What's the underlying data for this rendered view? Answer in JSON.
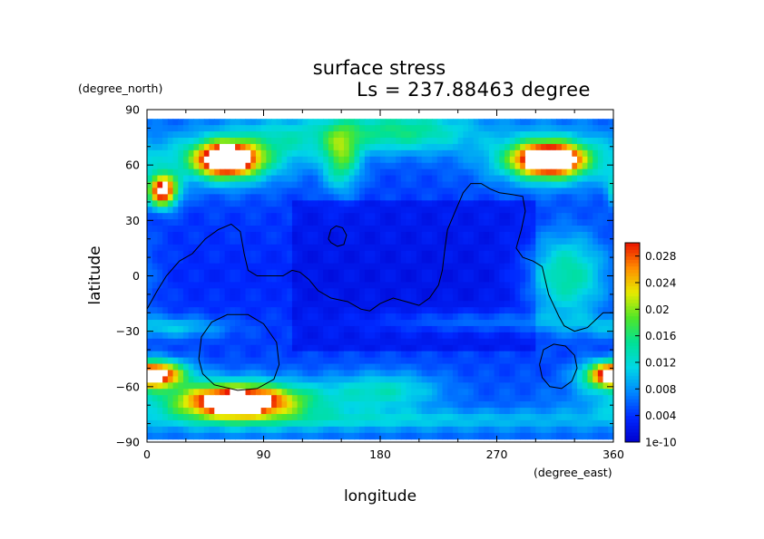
{
  "chart_data": {
    "type": "heatmap",
    "title": "surface stress",
    "subtitle": "Ls = 237.88463 degree",
    "xlabel": "longitude",
    "ylabel": "latitude",
    "x_unit": "(degree_east)",
    "y_unit": "(degree_north)",
    "xlim": [
      0,
      360
    ],
    "ylim": [
      -90,
      90
    ],
    "x_ticks": [
      "0",
      "90",
      "180",
      "270",
      "360"
    ],
    "y_ticks": [
      "90",
      "60",
      "30",
      "0",
      "−30",
      "−60",
      "−90"
    ],
    "x_tick_values": [
      0,
      90,
      180,
      270,
      360
    ],
    "y_tick_values": [
      90,
      60,
      30,
      0,
      -30,
      -60,
      -90
    ],
    "colorbar": {
      "range": [
        0,
        0.03
      ],
      "ticks": [
        "0.028",
        "0.024",
        "0.02",
        "0.016",
        "0.012",
        "0.008",
        "0.004",
        "1e-10"
      ],
      "tick_values": [
        0.028,
        0.024,
        0.02,
        0.016,
        0.012,
        0.008,
        0.004,
        0
      ],
      "colormap": "rainbow",
      "over_color": "#ffffff"
    },
    "grid": false,
    "features": [
      {
        "kind": "high",
        "lon": 62,
        "lat": 63,
        "dlon": 16,
        "dlat": 6,
        "value": 0.034
      },
      {
        "kind": "high",
        "lon": 62,
        "lat": 63,
        "dlon": 34,
        "dlat": 10,
        "value": 0.014
      },
      {
        "kind": "high",
        "lon": 310,
        "lat": 63,
        "dlon": 18,
        "dlat": 6,
        "value": 0.034
      },
      {
        "kind": "high",
        "lon": 310,
        "lat": 63,
        "dlon": 34,
        "dlat": 10,
        "value": 0.014
      },
      {
        "kind": "high",
        "lon": 12,
        "lat": 46,
        "dlon": 8,
        "dlat": 6,
        "value": 0.032
      },
      {
        "kind": "high",
        "lon": 150,
        "lat": 64,
        "dlon": 10,
        "dlat": 12,
        "value": 0.016
      },
      {
        "kind": "high",
        "lon": 195,
        "lat": 78,
        "dlon": 40,
        "dlat": 8,
        "value": 0.014
      },
      {
        "kind": "high",
        "lon": 110,
        "lat": 75,
        "dlon": 30,
        "dlat": 8,
        "value": 0.009
      },
      {
        "kind": "high",
        "lon": 325,
        "lat": 0,
        "dlon": 22,
        "dlat": 16,
        "value": 0.015
      },
      {
        "kind": "high",
        "lon": 70,
        "lat": -68,
        "dlon": 30,
        "dlat": 6,
        "value": 0.03
      },
      {
        "kind": "high",
        "lon": 70,
        "lat": -68,
        "dlon": 60,
        "dlat": 9,
        "value": 0.012
      },
      {
        "kind": "high",
        "lon": 10,
        "lat": -53,
        "dlon": 16,
        "dlat": 5,
        "value": 0.023
      },
      {
        "kind": "high",
        "lon": 355,
        "lat": -54,
        "dlon": 14,
        "dlat": 5,
        "value": 0.02
      },
      {
        "kind": "high",
        "lon": 190,
        "lat": -78,
        "dlon": 140,
        "dlat": 4,
        "value": 0.009
      },
      {
        "kind": "high",
        "lon": 260,
        "lat": -25,
        "dlon": 60,
        "dlat": 4,
        "value": 0.008
      },
      {
        "kind": "high",
        "lon": 20,
        "lat": -28,
        "dlon": 30,
        "dlat": 4,
        "value": 0.01
      },
      {
        "kind": "high",
        "lon": 185,
        "lat": -62,
        "dlon": 30,
        "dlat": 7,
        "value": 0.011
      }
    ],
    "contour_outlines": [
      {
        "name": "equatorial-line",
        "points": [
          [
            0,
            -18
          ],
          [
            8,
            -8
          ],
          [
            15,
            0
          ],
          [
            25,
            8
          ],
          [
            35,
            12
          ],
          [
            45,
            20
          ],
          [
            55,
            25
          ],
          [
            65,
            28
          ],
          [
            72,
            24
          ],
          [
            75,
            12
          ],
          [
            78,
            3
          ],
          [
            85,
            0
          ],
          [
            95,
            0
          ],
          [
            105,
            0
          ],
          [
            112,
            3
          ],
          [
            118,
            2
          ],
          [
            125,
            -2
          ],
          [
            132,
            -8
          ],
          [
            142,
            -12
          ],
          [
            155,
            -14
          ],
          [
            165,
            -18
          ],
          [
            172,
            -19
          ],
          [
            180,
            -15
          ],
          [
            190,
            -12
          ],
          [
            200,
            -14
          ],
          [
            210,
            -16
          ],
          [
            218,
            -12
          ],
          [
            225,
            -5
          ],
          [
            228,
            3
          ],
          [
            230,
            15
          ],
          [
            232,
            25
          ],
          [
            238,
            35
          ],
          [
            244,
            45
          ],
          [
            250,
            50
          ],
          [
            258,
            50
          ],
          [
            265,
            47
          ],
          [
            272,
            45
          ],
          [
            282,
            44
          ],
          [
            290,
            43
          ],
          [
            292,
            35
          ],
          [
            289,
            25
          ],
          [
            285,
            15
          ],
          [
            290,
            10
          ],
          [
            298,
            8
          ],
          [
            305,
            5
          ],
          [
            310,
            -10
          ],
          [
            318,
            -22
          ],
          [
            322,
            -27
          ],
          [
            330,
            -30
          ],
          [
            340,
            -28
          ],
          [
            352,
            -20
          ],
          [
            360,
            -20
          ]
        ]
      },
      {
        "name": "small-loop-north",
        "points": [
          [
            140,
            20
          ],
          [
            142,
            25
          ],
          [
            146,
            27
          ],
          [
            151,
            26
          ],
          [
            154,
            22
          ],
          [
            152,
            17
          ],
          [
            147,
            16
          ],
          [
            142,
            18
          ],
          [
            140,
            20
          ]
        ]
      },
      {
        "name": "southwest-loop",
        "points": [
          [
            40,
            -45
          ],
          [
            42,
            -33
          ],
          [
            50,
            -25
          ],
          [
            62,
            -21
          ],
          [
            78,
            -21
          ],
          [
            90,
            -26
          ],
          [
            100,
            -36
          ],
          [
            102,
            -48
          ],
          [
            98,
            -56
          ],
          [
            85,
            -61
          ],
          [
            70,
            -62
          ],
          [
            52,
            -59
          ],
          [
            43,
            -53
          ],
          [
            40,
            -45
          ]
        ]
      },
      {
        "name": "southeast-loop",
        "points": [
          [
            303,
            -48
          ],
          [
            306,
            -40
          ],
          [
            314,
            -37
          ],
          [
            323,
            -38
          ],
          [
            330,
            -43
          ],
          [
            332,
            -50
          ],
          [
            328,
            -57
          ],
          [
            320,
            -61
          ],
          [
            311,
            -60
          ],
          [
            305,
            -55
          ],
          [
            303,
            -48
          ]
        ]
      }
    ]
  }
}
